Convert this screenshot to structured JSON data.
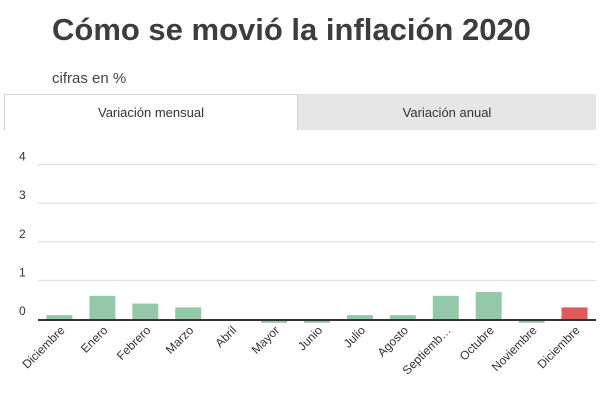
{
  "title": "Cómo se movió la inflación 2020",
  "subtitle": "cifras en %",
  "tabs": [
    {
      "label": "Variación mensual",
      "active": true
    },
    {
      "label": "Variación anual",
      "active": false
    }
  ],
  "colors": {
    "bar": "#93c9a9",
    "highlight": "#e05a5a",
    "grid": "#dddddd",
    "axis": "#333333"
  },
  "chart_data": {
    "type": "bar",
    "title": "",
    "xlabel": "",
    "ylabel": "",
    "categories": [
      "Diciembre",
      "Enero",
      "Febrero",
      "Marzo",
      "Abril",
      "Mayor",
      "Junio",
      "Julio",
      "Agosto",
      "Septiemb…",
      "Octubre",
      "Noviembre",
      "Diciembre"
    ],
    "values": [
      0.1,
      0.6,
      0.4,
      0.3,
      0.0,
      -0.1,
      -0.1,
      0.1,
      0.1,
      0.6,
      0.7,
      -0.1,
      0.3
    ],
    "highlight_index": 12,
    "yticks": [
      0,
      1,
      2,
      3,
      4
    ],
    "ylim": [
      -0.15,
      4.3
    ],
    "grid": true,
    "legend": "none"
  }
}
